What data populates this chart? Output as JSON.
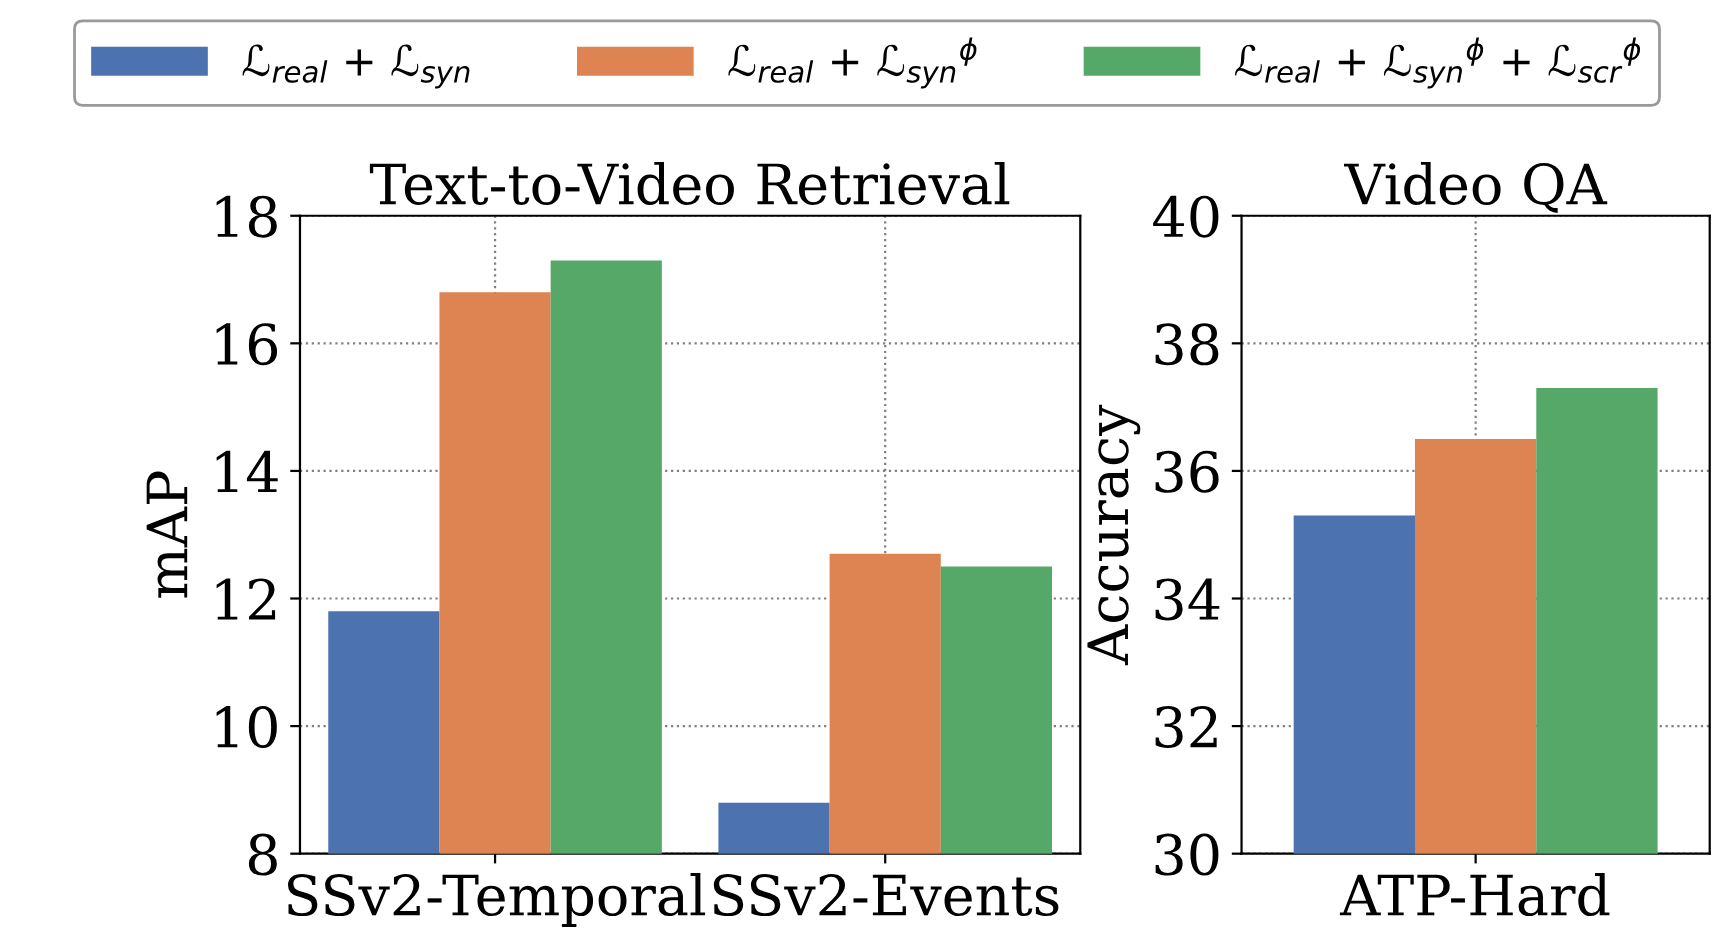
{
  "chart_data": [
    {
      "type": "bar",
      "title": "Text-to-Video Retrieval",
      "ylabel": "mAP",
      "categories": [
        "SSv2-Temporal",
        "SSv2-Events"
      ],
      "ylim": [
        8,
        18
      ],
      "yticks": [
        8,
        10,
        12,
        14,
        16,
        18
      ],
      "grid": true,
      "legend": "top",
      "series": [
        {
          "name": "ℒ$_{real}$ + ℒ$_{syn}$",
          "color": "#4c72b0",
          "values": [
            11.8,
            8.8
          ]
        },
        {
          "name": "ℒ$_{real}$ + ℒ$_{syn}$$^{ϕ}$",
          "color": "#dd8452",
          "values": [
            16.8,
            12.7
          ]
        },
        {
          "name": "ℒ$_{real}$ + ℒ$_{syn}$$^{ϕ}$ + ℒ$_{scr}$$^{ϕ}$",
          "color": "#55a868",
          "values": [
            17.3,
            12.5
          ]
        }
      ]
    },
    {
      "type": "bar",
      "title": "Video QA",
      "ylabel": "Accuracy",
      "categories": [
        "ATP-Hard"
      ],
      "ylim": [
        30,
        40
      ],
      "yticks": [
        30,
        32,
        34,
        36,
        38,
        40
      ],
      "grid": true,
      "series": [
        {
          "color": "#4c72b0",
          "values": [
            35.3
          ]
        },
        {
          "color": "#dd8452",
          "values": [
            36.5
          ]
        },
        {
          "color": "#55a868",
          "values": [
            37.3
          ]
        }
      ]
    }
  ]
}
